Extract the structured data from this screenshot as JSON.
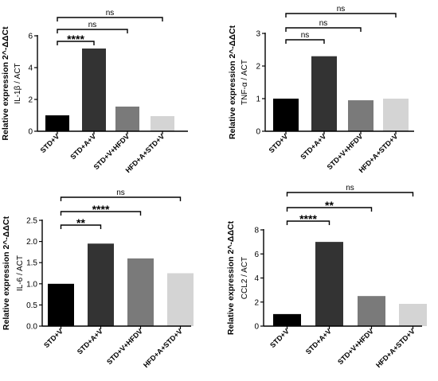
{
  "chart_data": [
    {
      "type": "bar",
      "ylabel": "Relative expression 2^-ΔΔCt",
      "ylabel2": "IL-1β / ACT",
      "categories": [
        "STD+V",
        "STD+A+V",
        "STD+V+HFDV",
        "HFD+A+STD+V"
      ],
      "values": [
        1.0,
        5.2,
        1.55,
        0.95
      ],
      "colors": [
        "#000000",
        "#333333",
        "#7a7a7a",
        "#d4d4d4"
      ],
      "ylim": [
        0,
        6
      ],
      "yticks": [
        "0",
        "2",
        "4",
        "6"
      ],
      "significance": [
        {
          "from": 0,
          "to": 1,
          "label": "****"
        },
        {
          "from": 0,
          "to": 2,
          "label": "ns"
        },
        {
          "from": 0,
          "to": 3,
          "label": "ns"
        }
      ]
    },
    {
      "type": "bar",
      "ylabel": "Relative expression 2^-ΔΔCt",
      "ylabel2": "TNF-α / ACT",
      "categories": [
        "STD+V",
        "STD+A+V",
        "STD+V+HFDV",
        "HFD+A+STD+V"
      ],
      "values": [
        1.0,
        2.3,
        0.95,
        1.0
      ],
      "colors": [
        "#000000",
        "#333333",
        "#7a7a7a",
        "#d4d4d4"
      ],
      "ylim": [
        0,
        3
      ],
      "yticks": [
        "0",
        "1",
        "2",
        "3"
      ],
      "significance": [
        {
          "from": 0,
          "to": 1,
          "label": "ns"
        },
        {
          "from": 0,
          "to": 2,
          "label": "ns"
        },
        {
          "from": 0,
          "to": 3,
          "label": "ns"
        }
      ]
    },
    {
      "type": "bar",
      "ylabel": "Relative expression 2^-ΔΔCt",
      "ylabel2": "IL-6 / ACT",
      "categories": [
        "STD+V",
        "STD+A+V",
        "STD+V+HFDV",
        "HFD+A+STD+V"
      ],
      "values": [
        1.0,
        1.95,
        1.6,
        1.25
      ],
      "colors": [
        "#000000",
        "#333333",
        "#7a7a7a",
        "#d4d4d4"
      ],
      "ylim": [
        0,
        2.5
      ],
      "yticks": [
        "0.0",
        "0.5",
        "1.0",
        "1.5",
        "2.0",
        "2.5"
      ],
      "significance": [
        {
          "from": 0,
          "to": 1,
          "label": "**"
        },
        {
          "from": 0,
          "to": 2,
          "label": "****"
        },
        {
          "from": 0,
          "to": 3,
          "label": "ns"
        }
      ]
    },
    {
      "type": "bar",
      "ylabel": "Relative expression 2^-ΔΔCt",
      "ylabel2": "CCL2 / ACT",
      "categories": [
        "STD+V",
        "STD+A+V",
        "STD+V+HFDV",
        "HFD+A+STD+V"
      ],
      "values": [
        1.0,
        7.0,
        2.5,
        1.85
      ],
      "colors": [
        "#000000",
        "#333333",
        "#7a7a7a",
        "#d4d4d4"
      ],
      "ylim": [
        0,
        8
      ],
      "yticks": [
        "0",
        "2",
        "4",
        "6",
        "8"
      ],
      "significance": [
        {
          "from": 0,
          "to": 1,
          "label": "****"
        },
        {
          "from": 0,
          "to": 2,
          "label": "**"
        },
        {
          "from": 0,
          "to": 3,
          "label": "ns"
        }
      ]
    }
  ]
}
